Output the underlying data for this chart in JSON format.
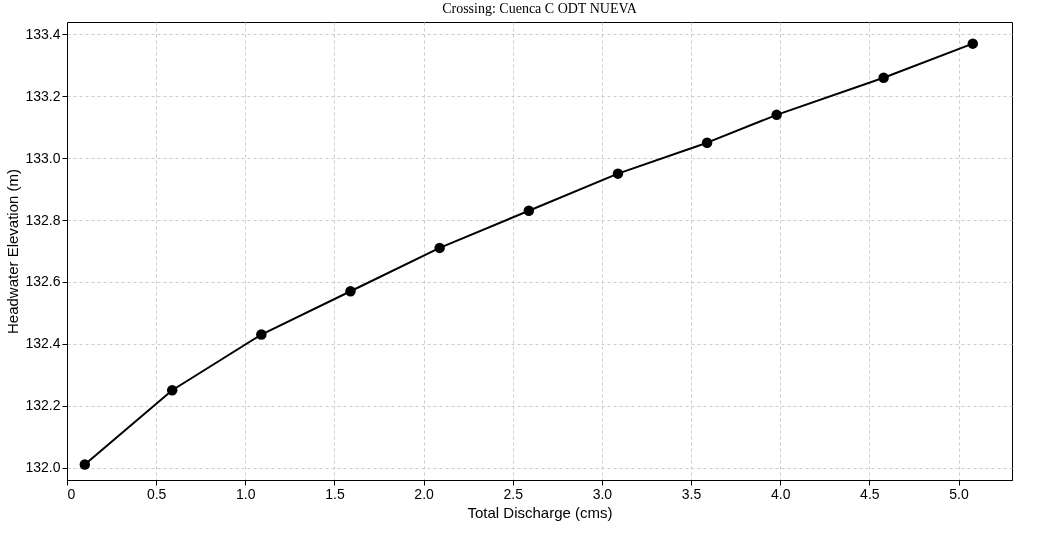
{
  "chart_data": {
    "type": "line",
    "title": "Crossing: Cuenca C ODT NUEVA",
    "xlabel": "Total Discharge (cms)",
    "ylabel": "Headwater Elevation (m)",
    "x": [
      0.1,
      0.59,
      1.09,
      1.59,
      2.09,
      2.59,
      3.09,
      3.59,
      3.98,
      4.58,
      5.08
    ],
    "series": [
      {
        "color": "#000000",
        "values": [
          132.01,
          132.25,
          132.43,
          132.57,
          132.71,
          132.83,
          132.95,
          133.05,
          133.14,
          133.26,
          133.37
        ]
      }
    ],
    "xlim": [
      0,
      5.3
    ],
    "ylim": [
      131.96,
      133.44
    ],
    "xticks": [
      0,
      0.5,
      {
        "value": 1,
        "label": "1.0"
      },
      1.5,
      {
        "value": 2,
        "label": "2.0"
      },
      2.5,
      {
        "value": 3,
        "label": "3.0"
      },
      3.5,
      {
        "value": 4,
        "label": "4.0"
      },
      4.5,
      {
        "value": 5,
        "label": "5.0"
      }
    ],
    "yticks": [
      {
        "value": 132,
        "label": "132.0"
      },
      132.2,
      132.4,
      132.6,
      132.8,
      {
        "value": 133,
        "label": "133.0"
      },
      133.2,
      133.4
    ],
    "grid": true,
    "marker": "circle",
    "line_style": "solid"
  }
}
